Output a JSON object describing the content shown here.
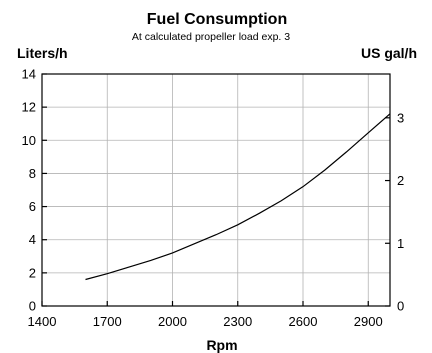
{
  "chart_data": {
    "type": "line",
    "title": "Fuel Consumption",
    "subtitle": "At calculated propeller load exp. 3",
    "xlabel": "Rpm",
    "ylabel": "Liters/h",
    "y2label": "US gal/h",
    "xlim": [
      1400,
      3000
    ],
    "ylim": [
      0,
      14
    ],
    "y2lim": [
      0,
      3.6985
    ],
    "x_ticks": [
      "1400",
      "1700",
      "2000",
      "2300",
      "2600",
      "2900"
    ],
    "y_ticks": [
      "0",
      "2",
      "4",
      "6",
      "8",
      "10",
      "12",
      "14"
    ],
    "y2_ticks": [
      "0",
      "1",
      "2",
      "3"
    ],
    "grid": true,
    "series": [
      {
        "x": [
          1600,
          1700,
          1800,
          1900,
          2000,
          2100,
          2200,
          2300,
          2400,
          2500,
          2600,
          2700,
          2800,
          2900,
          3000
        ],
        "y": [
          1.6,
          1.95,
          2.35,
          2.75,
          3.2,
          3.75,
          4.3,
          4.9,
          5.6,
          6.35,
          7.2,
          8.2,
          9.3,
          10.45,
          11.6
        ]
      }
    ]
  }
}
